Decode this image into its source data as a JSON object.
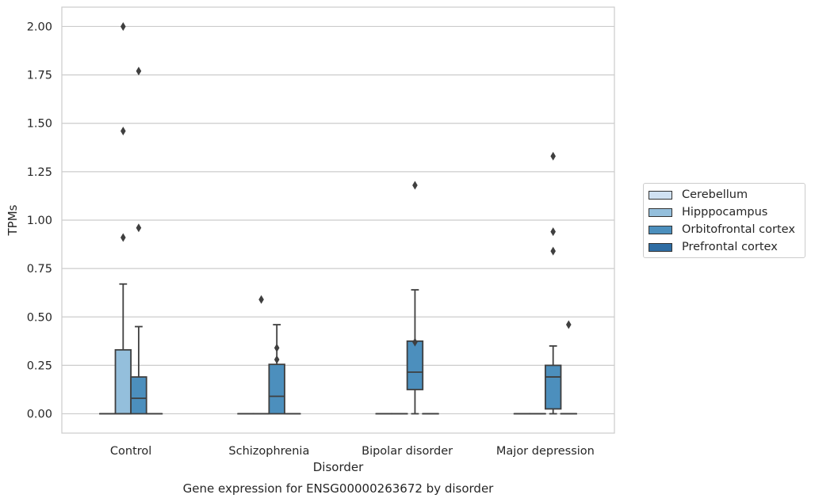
{
  "chart_data": {
    "type": "box",
    "title": "Gene expression for ENSG00000263672 by disorder",
    "xlabel": "Disorder",
    "ylabel": "TPMs",
    "ylim": [
      -0.1,
      2.1
    ],
    "yticks": [
      "0.00",
      "0.25",
      "0.50",
      "0.75",
      "1.00",
      "1.25",
      "1.50",
      "1.75",
      "2.00"
    ],
    "grid": "horizontal",
    "legend_position": "right",
    "categories": [
      "Control",
      "Schizophrenia",
      "Bipolar disorder",
      "Major depression"
    ],
    "series": [
      {
        "name": "Cerebellum",
        "color": "#d0e1f2",
        "boxes": [
          {
            "q1": 0,
            "median": 0,
            "q3": 0,
            "whisker_low": 0,
            "whisker_high": 0,
            "outliers": []
          },
          {
            "q1": 0,
            "median": 0,
            "q3": 0,
            "whisker_low": 0,
            "whisker_high": 0,
            "outliers": []
          },
          {
            "q1": 0,
            "median": 0,
            "q3": 0,
            "whisker_low": 0,
            "whisker_high": 0,
            "outliers": []
          },
          {
            "q1": 0,
            "median": 0,
            "q3": 0,
            "whisker_low": 0,
            "whisker_high": 0,
            "outliers": []
          }
        ]
      },
      {
        "name": "Hipppocampus",
        "color": "#94bfdc",
        "boxes": [
          {
            "q1": 0,
            "median": 0,
            "q3": 0.33,
            "whisker_low": 0,
            "whisker_high": 0.67,
            "outliers": [
              0.91,
              1.46,
              2.0
            ]
          },
          {
            "q1": 0,
            "median": 0,
            "q3": 0,
            "whisker_low": 0,
            "whisker_high": 0,
            "outliers": [
              0.59
            ]
          },
          {
            "q1": 0,
            "median": 0,
            "q3": 0,
            "whisker_low": 0,
            "whisker_high": 0,
            "outliers": []
          },
          {
            "q1": 0,
            "median": 0,
            "q3": 0,
            "whisker_low": 0,
            "whisker_high": 0,
            "outliers": []
          }
        ]
      },
      {
        "name": "Orbitofrontal cortex",
        "color": "#4c8fbd",
        "boxes": [
          {
            "q1": 0,
            "median": 0.08,
            "q3": 0.19,
            "whisker_low": 0,
            "whisker_high": 0.45,
            "outliers": [
              0.96,
              1.77
            ]
          },
          {
            "q1": 0,
            "median": 0.09,
            "q3": 0.255,
            "whisker_low": 0,
            "whisker_high": 0.46,
            "outliers": [
              0.28,
              0.34
            ]
          },
          {
            "q1": 0.125,
            "median": 0.215,
            "q3": 0.375,
            "whisker_low": 0,
            "whisker_high": 0.64,
            "outliers": [
              0.37,
              1.18
            ]
          },
          {
            "q1": 0.025,
            "median": 0.19,
            "q3": 0.25,
            "whisker_low": 0,
            "whisker_high": 0.35,
            "outliers": [
              0.84,
              0.94,
              1.33
            ]
          }
        ]
      },
      {
        "name": "Prefrontal cortex",
        "color": "#2e6da4",
        "boxes": [
          {
            "q1": 0,
            "median": 0,
            "q3": 0,
            "whisker_low": 0,
            "whisker_high": 0,
            "outliers": []
          },
          {
            "q1": 0,
            "median": 0,
            "q3": 0,
            "whisker_low": 0,
            "whisker_high": 0,
            "outliers": []
          },
          {
            "q1": 0,
            "median": 0,
            "q3": 0,
            "whisker_low": 0,
            "whisker_high": 0,
            "outliers": []
          },
          {
            "q1": 0,
            "median": 0,
            "q3": 0,
            "whisker_low": 0,
            "whisker_high": 0,
            "outliers": [
              0.46
            ]
          }
        ]
      }
    ]
  }
}
